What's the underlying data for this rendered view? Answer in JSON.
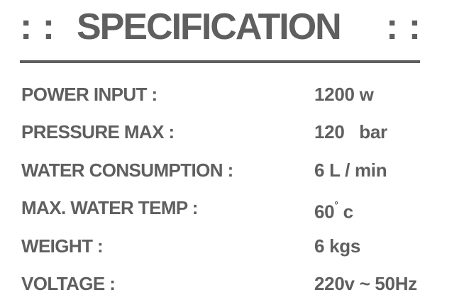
{
  "title": {
    "left_mark": ": :",
    "text": "SPECIFICATION",
    "right_mark": ": :"
  },
  "specs": [
    {
      "label": "POWER  INPUT :",
      "value": "1200 w"
    },
    {
      "label": "PRESSURE MAX :",
      "value": "120   bar"
    },
    {
      "label": "WATER CONSUMPTION :",
      "value": "6 L / min"
    },
    {
      "label": "MAX. WATER TEMP :",
      "value": "60",
      "value_sup": "°",
      "value_suffix": " c"
    },
    {
      "label": "WEIGHT :",
      "value": "6 kgs"
    },
    {
      "label": "VOLTAGE :",
      "value": "220v ~ 50Hz"
    }
  ],
  "colors": {
    "text": "#5f5f5f",
    "background": "#ffffff"
  }
}
